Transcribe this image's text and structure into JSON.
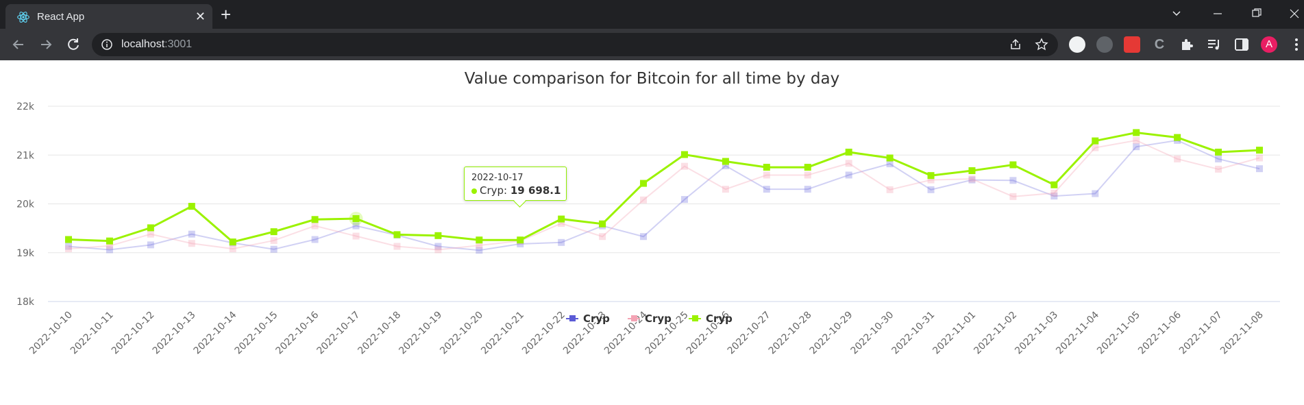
{
  "browser": {
    "tab_title": "React App",
    "tab_close": "✕",
    "new_tab": "+",
    "url_host": "localhost",
    "url_port": ":3001",
    "avatar_letter": "A"
  },
  "colors": {
    "series_1": "#5b5bd6",
    "series_2": "#f4a3b4",
    "series_3": "#9bf200"
  },
  "chart_data": {
    "type": "line",
    "title": "Value comparison for Bitcoin for all time by day",
    "xlabel": "",
    "ylabel": "",
    "ylim": [
      18000,
      22000
    ],
    "yticks": [
      "18k",
      "19k",
      "20k",
      "21k",
      "22k"
    ],
    "grid": true,
    "legend_position": "bottom-center",
    "categories": [
      "2022-10-10",
      "2022-10-11",
      "2022-10-12",
      "2022-10-13",
      "2022-10-14",
      "2022-10-15",
      "2022-10-16",
      "2022-10-17",
      "2022-10-18",
      "2022-10-19",
      "2022-10-20",
      "2022-10-21",
      "2022-10-22",
      "2022-10-23",
      "2022-10-24",
      "2022-10-25",
      "2022-10-26",
      "2022-10-27",
      "2022-10-28",
      "2022-10-29",
      "2022-10-30",
      "2022-10-31",
      "2022-11-01",
      "2022-11-02",
      "2022-11-03",
      "2022-11-04",
      "2022-11-05",
      "2022-11-06",
      "2022-11-07",
      "2022-11-08"
    ],
    "series": [
      {
        "name": "Cryp",
        "values": [
          19130,
          19060,
          19160,
          19380,
          19200,
          19070,
          19270,
          19550,
          19360,
          19130,
          19050,
          19180,
          19210,
          19550,
          19330,
          20090,
          20780,
          20300,
          20300,
          20590,
          20820,
          20290,
          20490,
          20480,
          20160,
          20210,
          21170,
          21300,
          20920,
          20720
        ]
      },
      {
        "name": "Cryp",
        "values": [
          19080,
          19140,
          19380,
          19190,
          19080,
          19250,
          19550,
          19340,
          19130,
          19060,
          19150,
          19240,
          19600,
          19330,
          20080,
          20770,
          20300,
          20590,
          20590,
          20830,
          20290,
          20490,
          20510,
          20150,
          20220,
          21150,
          21300,
          20920,
          20710,
          20940
        ]
      },
      {
        "name": "Cryp",
        "values": [
          19270,
          19240,
          19510,
          19950,
          19220,
          19430,
          19680,
          19698.1,
          19370,
          19350,
          19260,
          19260,
          19690,
          19590,
          20420,
          21010,
          20870,
          20750,
          20750,
          21060,
          20940,
          20580,
          20680,
          20800,
          20390,
          21290,
          21460,
          21360,
          21060,
          21100
        ]
      }
    ],
    "tooltip": {
      "date": "2022-10-17",
      "series": "Cryp",
      "value": "19 698.1"
    }
  }
}
